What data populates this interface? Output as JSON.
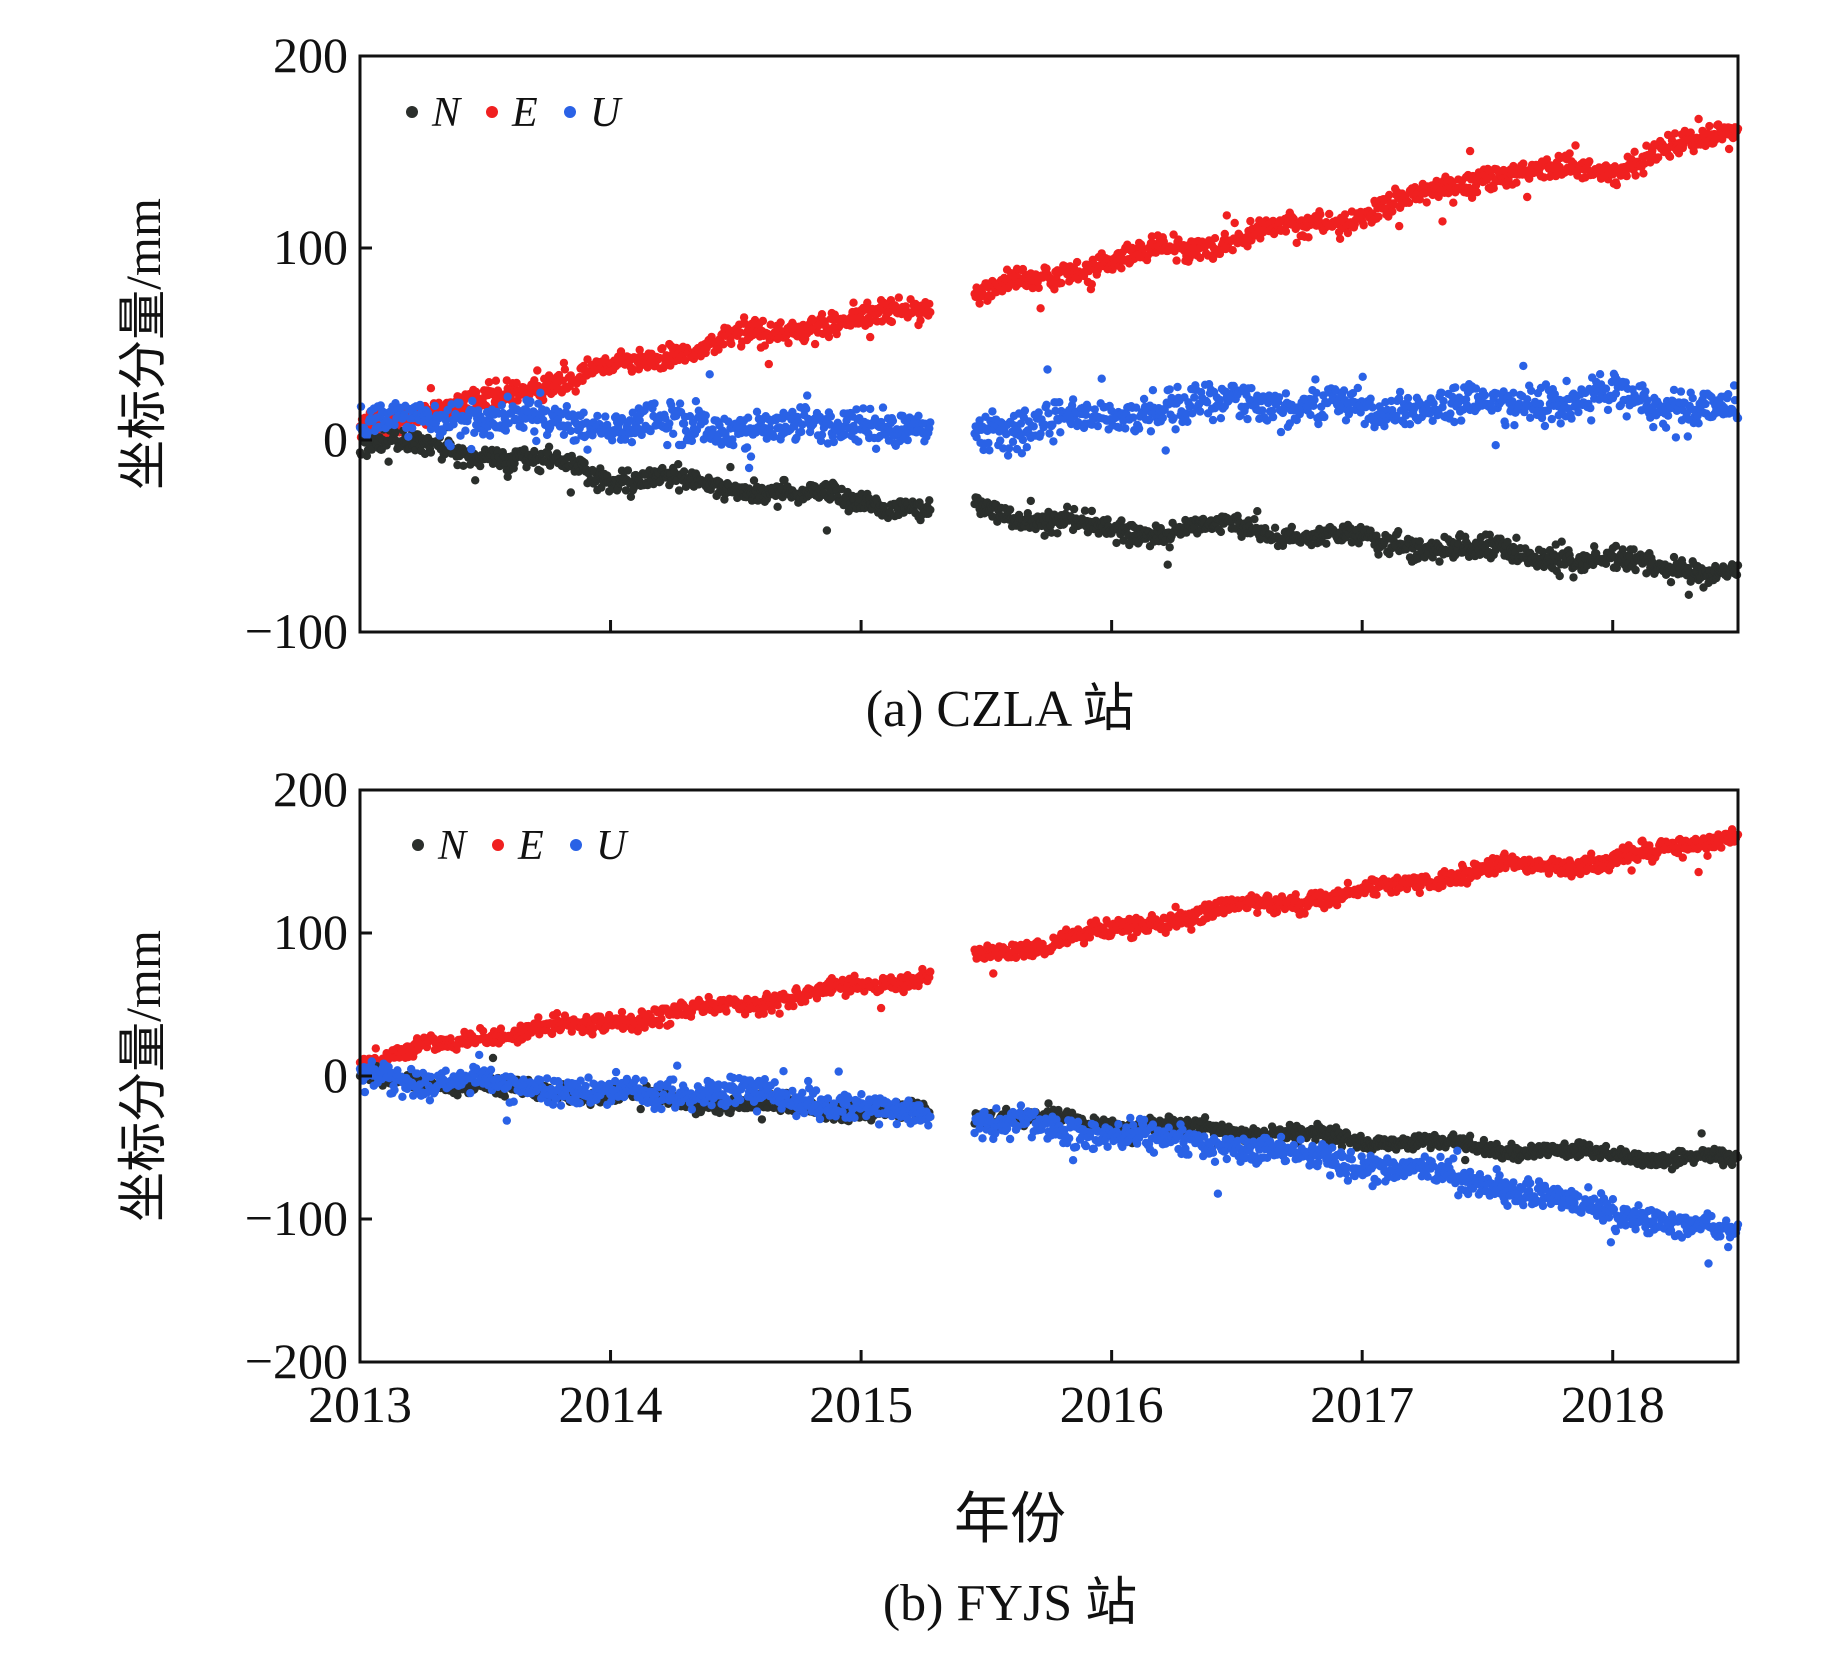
{
  "figure": {
    "shared_xlabel": "年份",
    "colors": {
      "N": "#2b2f2c",
      "E": "#f02020",
      "U": "#2a62e6",
      "axis": "#111111"
    }
  },
  "chart_data": [
    {
      "type": "scatter",
      "caption": "(a) CZLA 站",
      "ylabel": "坐标分量/mm",
      "xlim": [
        2013.0,
        2018.5
      ],
      "ylim": [
        -100,
        200
      ],
      "yticks": [
        -100,
        0,
        100,
        200
      ],
      "ytick_labels": [
        "−100",
        "0",
        "100",
        "200"
      ],
      "xticks": [
        2014,
        2015,
        2016,
        2017,
        2018
      ],
      "xtick_labels": [],
      "legend": {
        "position": "top-left",
        "entries": [
          "N",
          "E",
          "U"
        ]
      },
      "data_gap": [
        2015.28,
        2015.45
      ],
      "series": [
        {
          "name": "N",
          "x": [
            2013.0,
            2013.5,
            2014.0,
            2014.5,
            2015.0,
            2015.28,
            2015.45,
            2016.0,
            2016.5,
            2017.0,
            2017.5,
            2018.0,
            2018.5
          ],
          "y": [
            0,
            -7,
            -18,
            -25,
            -31,
            -36,
            -35,
            -48,
            -46,
            -52,
            -58,
            -63,
            -70
          ]
        },
        {
          "name": "E",
          "x": [
            2013.0,
            2013.5,
            2014.0,
            2014.5,
            2015.0,
            2015.28,
            2015.45,
            2016.0,
            2016.5,
            2017.0,
            2017.5,
            2018.0,
            2018.5
          ],
          "y": [
            8,
            20,
            38,
            53,
            63,
            70,
            76,
            93,
            105,
            117,
            138,
            142,
            162
          ]
        },
        {
          "name": "U",
          "x": [
            2013.0,
            2013.5,
            2014.0,
            2014.5,
            2015.0,
            2015.28,
            2015.45,
            2016.0,
            2016.5,
            2017.0,
            2017.5,
            2018.0,
            2018.5
          ],
          "y": [
            8,
            12,
            8,
            6,
            9,
            4,
            6,
            12,
            20,
            16,
            18,
            22,
            15
          ]
        }
      ]
    },
    {
      "type": "scatter",
      "caption": "(b) FYJS 站",
      "ylabel": "坐标分量/mm",
      "xlim": [
        2013.0,
        2018.5
      ],
      "ylim": [
        -200,
        200
      ],
      "yticks": [
        -200,
        -100,
        0,
        100,
        200
      ],
      "ytick_labels": [
        "−200",
        "−100",
        "0",
        "100",
        "200"
      ],
      "xticks": [
        2013,
        2014,
        2015,
        2016,
        2017,
        2018
      ],
      "xtick_labels": [
        "2013",
        "2014",
        "2015",
        "2016",
        "2017",
        "2018"
      ],
      "legend": {
        "position": "top-left",
        "entries": [
          "N",
          "E",
          "U"
        ]
      },
      "data_gap": [
        2015.28,
        2015.45
      ],
      "series": [
        {
          "name": "N",
          "x": [
            2013.0,
            2013.5,
            2014.0,
            2014.5,
            2015.0,
            2015.28,
            2015.45,
            2016.0,
            2016.5,
            2017.0,
            2017.5,
            2018.0,
            2018.5
          ],
          "y": [
            0,
            -8,
            -14,
            -20,
            -24,
            -27,
            -28,
            -33,
            -38,
            -44,
            -50,
            -55,
            -60
          ]
        },
        {
          "name": "E",
          "x": [
            2013.0,
            2013.5,
            2014.0,
            2014.5,
            2015.0,
            2015.28,
            2015.45,
            2016.0,
            2016.5,
            2017.0,
            2017.5,
            2018.0,
            2018.5
          ],
          "y": [
            10,
            28,
            38,
            50,
            63,
            71,
            82,
            102,
            118,
            128,
            145,
            150,
            170
          ]
        },
        {
          "name": "U",
          "x": [
            2013.0,
            2013.5,
            2014.0,
            2014.5,
            2015.0,
            2015.28,
            2015.45,
            2016.0,
            2016.5,
            2017.0,
            2017.5,
            2018.0,
            2018.5
          ],
          "y": [
            0,
            -5,
            -12,
            -10,
            -22,
            -28,
            -30,
            -42,
            -48,
            -62,
            -75,
            -95,
            -112
          ]
        }
      ]
    }
  ]
}
